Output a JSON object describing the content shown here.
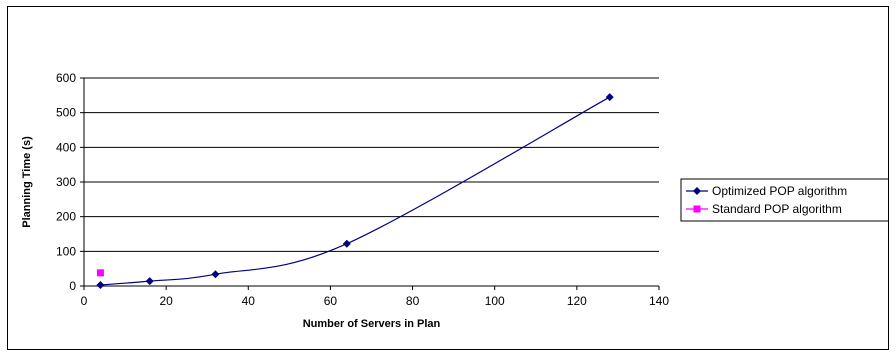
{
  "chart_data": {
    "type": "scatter",
    "title": "",
    "xlabel": "Number of Servers in Plan",
    "ylabel": "Planning Time (s)",
    "xlim": [
      0,
      140
    ],
    "ylim": [
      0,
      600
    ],
    "x_ticks": [
      0,
      20,
      40,
      60,
      80,
      100,
      120,
      140
    ],
    "y_ticks": [
      0,
      100,
      200,
      300,
      400,
      500,
      600
    ],
    "grid": "horizontal",
    "legend_position": "right",
    "series": [
      {
        "name": "Optimized POP algorithm",
        "color": "#000080",
        "marker": "diamond",
        "line": "smooth",
        "x": [
          4,
          16,
          32,
          64,
          128
        ],
        "y": [
          3,
          14,
          34,
          122,
          545
        ]
      },
      {
        "name": "Standard POP algorithm",
        "color": "#FF00FF",
        "marker": "square",
        "line": "none",
        "x": [
          4
        ],
        "y": [
          38
        ]
      }
    ]
  }
}
